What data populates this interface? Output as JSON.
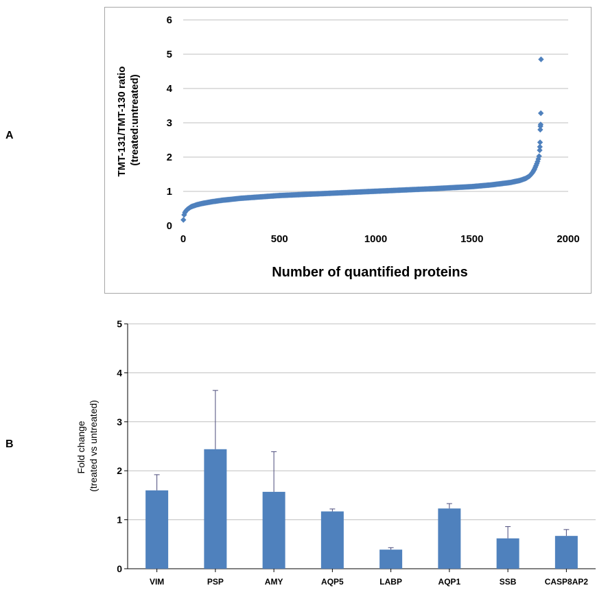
{
  "panels": {
    "a_letter": "A",
    "b_letter": "B"
  },
  "colors": {
    "series": "#4f81bd",
    "grid": "#bfbfbf",
    "border": "#a6a6a6",
    "errorbar": "#4a4a7a"
  },
  "chart_data": [
    {
      "type": "scatter",
      "marker": "diamond",
      "xlabel": "Number of quantified proteins",
      "ylabel_line1": "TMT-131/TMT-130 ratio",
      "ylabel_line2": "(treated:untreated)",
      "xlim": [
        0,
        2000
      ],
      "ylim": [
        0,
        6
      ],
      "x_ticks": [
        "0",
        "500",
        "1000",
        "1500",
        "2000"
      ],
      "y_ticks": [
        "0",
        "1",
        "2",
        "3",
        "4",
        "5",
        "6"
      ],
      "grid": "horizontal",
      "n_points": 1860,
      "curve": [
        [
          1,
          0.17
        ],
        [
          3,
          0.27
        ],
        [
          6,
          0.34
        ],
        [
          10,
          0.4
        ],
        [
          20,
          0.47
        ],
        [
          40,
          0.55
        ],
        [
          70,
          0.61
        ],
        [
          100,
          0.65
        ],
        [
          150,
          0.7
        ],
        [
          200,
          0.74
        ],
        [
          300,
          0.8
        ],
        [
          400,
          0.84
        ],
        [
          500,
          0.88
        ],
        [
          700,
          0.93
        ],
        [
          900,
          0.98
        ],
        [
          1100,
          1.03
        ],
        [
          1300,
          1.08
        ],
        [
          1500,
          1.14
        ],
        [
          1600,
          1.19
        ],
        [
          1700,
          1.26
        ],
        [
          1750,
          1.32
        ],
        [
          1780,
          1.38
        ],
        [
          1800,
          1.45
        ],
        [
          1815,
          1.55
        ],
        [
          1825,
          1.65
        ],
        [
          1835,
          1.78
        ],
        [
          1843,
          1.9
        ],
        [
          1850,
          2.05
        ]
      ],
      "outliers": [
        [
          1852,
          2.2
        ],
        [
          1853,
          2.3
        ],
        [
          1854,
          2.43
        ],
        [
          1855,
          2.8
        ],
        [
          1856,
          2.9
        ],
        [
          1857,
          2.95
        ],
        [
          1858,
          3.28
        ],
        [
          1859,
          4.85
        ]
      ]
    },
    {
      "type": "bar",
      "categories": [
        "VIM",
        "PSP",
        "AMY",
        "AQP5",
        "LABP",
        "AQP1",
        "SSB",
        "CASP8AP2"
      ],
      "values": [
        1.6,
        2.44,
        1.57,
        1.17,
        0.39,
        1.23,
        0.62,
        0.67
      ],
      "error_upper": [
        0.32,
        1.2,
        0.82,
        0.05,
        0.04,
        0.1,
        0.24,
        0.13
      ],
      "ylabel_line1": "Fold change",
      "ylabel_line2": "(treated vs untreated)",
      "ylim": [
        0,
        5
      ],
      "y_ticks": [
        "0",
        "1",
        "2",
        "3",
        "4",
        "5"
      ],
      "grid": "horizontal"
    }
  ]
}
